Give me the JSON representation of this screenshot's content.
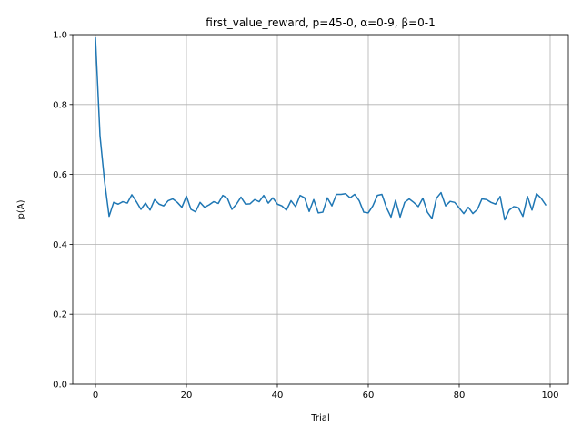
{
  "chart_data": {
    "type": "line",
    "title": "first_value_reward, p=45-0, α=0-9, β=0-1",
    "xlabel": "Trial",
    "ylabel": "p(A)",
    "xlim": [
      -5,
      104
    ],
    "ylim": [
      0.0,
      1.0
    ],
    "xticks": [
      0,
      20,
      40,
      60,
      80,
      100
    ],
    "yticks": [
      0.0,
      0.2,
      0.4,
      0.6,
      0.8,
      1.0
    ],
    "xtick_labels": [
      "0",
      "20",
      "40",
      "60",
      "80",
      "100"
    ],
    "ytick_labels": [
      "0.0",
      "0.2",
      "0.4",
      "0.6",
      "0.8",
      "1.0"
    ],
    "grid": true,
    "series": [
      {
        "color": "#1f77b4",
        "values": [
          0.99,
          0.71,
          0.58,
          0.48,
          0.52,
          0.515,
          0.522,
          0.518,
          0.542,
          0.522,
          0.5,
          0.518,
          0.498,
          0.528,
          0.515,
          0.51,
          0.525,
          0.53,
          0.52,
          0.506,
          0.538,
          0.5,
          0.493,
          0.52,
          0.506,
          0.513,
          0.522,
          0.517,
          0.54,
          0.532,
          0.5,
          0.515,
          0.535,
          0.515,
          0.516,
          0.528,
          0.522,
          0.54,
          0.518,
          0.533,
          0.515,
          0.51,
          0.498,
          0.525,
          0.508,
          0.54,
          0.533,
          0.494,
          0.528,
          0.49,
          0.492,
          0.533,
          0.51,
          0.543,
          0.543,
          0.545,
          0.533,
          0.543,
          0.525,
          0.492,
          0.49,
          0.51,
          0.54,
          0.543,
          0.505,
          0.478,
          0.526,
          0.478,
          0.52,
          0.53,
          0.52,
          0.508,
          0.532,
          0.492,
          0.474,
          0.532,
          0.548,
          0.51,
          0.523,
          0.52,
          0.504,
          0.488,
          0.506,
          0.488,
          0.5,
          0.53,
          0.528,
          0.52,
          0.515,
          0.537,
          0.47,
          0.498,
          0.508,
          0.505,
          0.48,
          0.537,
          0.498,
          0.545,
          0.532,
          0.513
        ]
      }
    ]
  }
}
